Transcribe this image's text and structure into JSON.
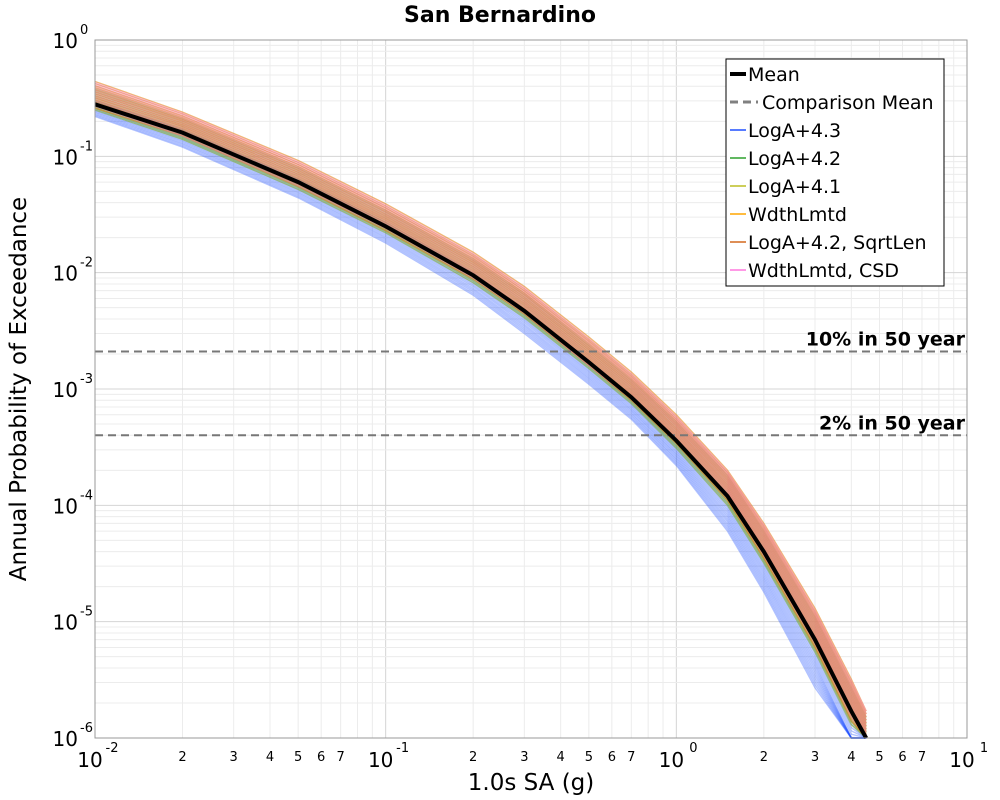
{
  "chart_data": {
    "type": "line",
    "title": "San Bernardino",
    "xlabel": "1.0s SA (g)",
    "ylabel": "Annual Probability of Exceedance",
    "xscale": "log",
    "yscale": "log",
    "xlim": [
      0.01,
      10
    ],
    "ylim": [
      1e-06,
      1
    ],
    "grid": true,
    "legend_position": "top-right",
    "x_ticks_major": [
      {
        "base": "10",
        "exp": "-2"
      },
      {
        "base": "10",
        "exp": "-1"
      },
      {
        "base": "10",
        "exp": "0"
      },
      {
        "base": "10",
        "exp": "1"
      }
    ],
    "y_ticks_major": [
      {
        "base": "10",
        "exp": "0"
      },
      {
        "base": "10",
        "exp": "-1"
      },
      {
        "base": "10",
        "exp": "-2"
      },
      {
        "base": "10",
        "exp": "-3"
      },
      {
        "base": "10",
        "exp": "-4"
      },
      {
        "base": "10",
        "exp": "-5"
      },
      {
        "base": "10",
        "exp": "-6"
      }
    ],
    "x_ticks_minor_labels": [
      "2",
      "3",
      "4",
      "5",
      "6",
      "7"
    ],
    "reference_lines": [
      {
        "label": "10% in 50 year",
        "y": 0.0021
      },
      {
        "label": "2% in 50 year",
        "y": 0.0004
      }
    ],
    "x": [
      0.01,
      0.02,
      0.05,
      0.1,
      0.2,
      0.3,
      0.5,
      0.7,
      1.0,
      1.5,
      2.0,
      3.0,
      4.0,
      4.5
    ],
    "series": [
      {
        "name": "Mean",
        "color": "#000000",
        "style": "solid-thick",
        "values": [
          0.28,
          0.16,
          0.06,
          0.025,
          0.0095,
          0.0047,
          0.0017,
          0.00085,
          0.00036,
          0.00012,
          4e-05,
          7e-06,
          1.7e-06,
          9e-07
        ]
      },
      {
        "name": "Comparison Mean",
        "color": "#808080",
        "style": "dashed",
        "values": [
          0.28,
          0.16,
          0.06,
          0.025,
          0.0095,
          0.0047,
          0.0017,
          0.00085,
          0.00036,
          0.00012,
          4e-05,
          7e-06,
          1.7e-06,
          9e-07
        ]
      },
      {
        "name": "LogA+4.3",
        "color": "#1f4fff",
        "style": "thin",
        "values_low": [
          0.22,
          0.12,
          0.044,
          0.018,
          0.0064,
          0.003,
          0.0011,
          0.00055,
          0.00022,
          6e-05,
          1.8e-05,
          2.7e-06,
          6e-07,
          3e-07
        ],
        "values_high": [
          0.3,
          0.17,
          0.064,
          0.027,
          0.01,
          0.0048,
          0.0017,
          0.00085,
          0.00034,
          0.00011,
          3.5e-05,
          6e-06,
          1.4e-06,
          7e-07
        ]
      },
      {
        "name": "LogA+4.2",
        "color": "#2ca02c",
        "style": "thin",
        "values_low": [
          0.25,
          0.14,
          0.052,
          0.022,
          0.0082,
          0.0041,
          0.0015,
          0.00075,
          0.00031,
          0.0001,
          3.2e-05,
          5.5e-06,
          1.3e-06,
          7e-07
        ],
        "values_high": [
          0.38,
          0.21,
          0.08,
          0.034,
          0.013,
          0.0066,
          0.0024,
          0.0012,
          0.00052,
          0.00018,
          6e-05,
          1.1e-05,
          2.7e-06,
          1.5e-06
        ]
      },
      {
        "name": "LogA+4.1",
        "color": "#bcbd22",
        "style": "thin",
        "values_low": [
          0.25,
          0.14,
          0.052,
          0.022,
          0.0082,
          0.0041,
          0.0015,
          0.00075,
          0.00031,
          0.0001,
          3.2e-05,
          5.5e-06,
          1.3e-06,
          7e-07
        ],
        "values_high": [
          0.4,
          0.22,
          0.085,
          0.036,
          0.014,
          0.007,
          0.0026,
          0.0013,
          0.00055,
          0.00019,
          6.5e-05,
          1.2e-05,
          3e-06,
          1.6e-06
        ]
      },
      {
        "name": "WdthLmtd",
        "color": "#ffa500",
        "style": "thin",
        "values_low": [
          0.26,
          0.15,
          0.055,
          0.023,
          0.0088,
          0.0044,
          0.0016,
          0.0008,
          0.00034,
          0.00011,
          3.5e-05,
          6e-06,
          1.4e-06,
          8e-07
        ],
        "values_high": [
          0.44,
          0.24,
          0.092,
          0.039,
          0.015,
          0.0076,
          0.0028,
          0.0014,
          0.0006,
          0.0002,
          7e-05,
          1.3e-05,
          3.2e-06,
          1.7e-06
        ]
      },
      {
        "name": "LogA+4.2, SqrtLen",
        "color": "#d2691e",
        "style": "thin",
        "values_low": [
          0.26,
          0.15,
          0.055,
          0.023,
          0.0088,
          0.0044,
          0.0016,
          0.0008,
          0.00034,
          0.00011,
          3.5e-05,
          6e-06,
          1.4e-06,
          8e-07
        ],
        "values_high": [
          0.44,
          0.24,
          0.092,
          0.039,
          0.015,
          0.0076,
          0.0028,
          0.0014,
          0.0006,
          0.0002,
          7e-05,
          1.3e-05,
          3.2e-06,
          1.7e-06
        ]
      },
      {
        "name": "WdthLmtd, CSD",
        "color": "#ff77dd",
        "style": "thin",
        "values_low": [
          0.27,
          0.15,
          0.056,
          0.024,
          0.009,
          0.0045,
          0.0016,
          0.00082,
          0.00035,
          0.000115,
          3.7e-05,
          6.4e-06,
          1.5e-06,
          8e-07
        ],
        "values_high": [
          0.43,
          0.235,
          0.09,
          0.038,
          0.0145,
          0.0074,
          0.0027,
          0.00135,
          0.00058,
          0.000195,
          6.8e-05,
          1.25e-05,
          3.1e-06,
          1.7e-06
        ]
      }
    ]
  }
}
